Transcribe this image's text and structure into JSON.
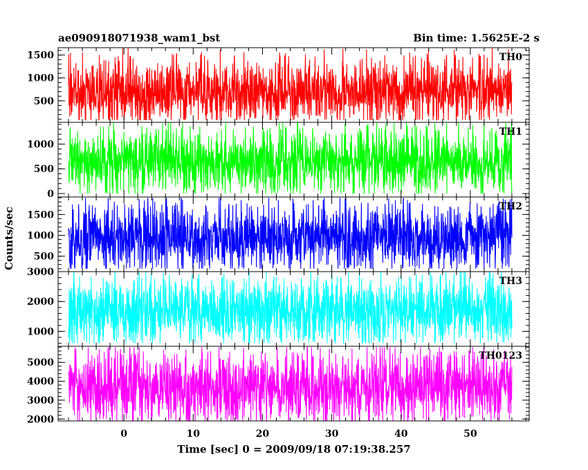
{
  "header": {
    "left_title": "ae090918071938_wam1_bst",
    "right_title": "Bin time: 1.5625E-2 s"
  },
  "axes": {
    "xlabel": "Time [sec] 0 = 2009/09/18 07:19:38.257",
    "ylabel": "Counts/sec"
  },
  "chart_data": {
    "type": "line",
    "title": "ae090918071938_wam1_bst",
    "subtitle": "Bin time: 1.5625E-2 s",
    "xlabel": "Time [sec] 0 = 2009/09/18 07:19:38.257",
    "ylabel": "Counts/sec",
    "xlim": [
      -9.5,
      58.5
    ],
    "x_data_range": [
      -8,
      56
    ],
    "x_ticks": [
      0,
      10,
      20,
      30,
      40,
      50
    ],
    "x_tick_labels": [
      "0",
      "10",
      "20",
      "30",
      "40",
      "50"
    ],
    "series": [
      {
        "name": "TH0",
        "color": "#ff0000",
        "ylim": [
          30,
          1660
        ],
        "y_ticks": [
          500,
          1000,
          1500
        ],
        "y_tick_labels": [
          "500",
          "1000",
          "1500"
        ],
        "baseline": 700,
        "typical_low": 250,
        "typical_high": 1300,
        "min": 80,
        "max": 1650
      },
      {
        "name": "TH1",
        "color": "#00ff00",
        "ylim": [
          -70,
          1440
        ],
        "y_ticks": [
          0,
          500,
          1000
        ],
        "y_tick_labels": [
          "0",
          "500",
          "1000"
        ],
        "baseline": 650,
        "typical_low": 150,
        "typical_high": 1200,
        "min": 0,
        "max": 1430
      },
      {
        "name": "TH2",
        "color": "#0000ff",
        "ylim": [
          130,
          1920
        ],
        "y_ticks": [
          500,
          1000,
          1500
        ],
        "y_tick_labels": [
          "500",
          "1000",
          "1500"
        ],
        "baseline": 950,
        "typical_low": 350,
        "typical_high": 1600,
        "min": 200,
        "max": 1900
      },
      {
        "name": "TH3",
        "color": "#00ffff",
        "ylim": [
          500,
          3000
        ],
        "y_ticks": [
          1000,
          2000,
          3000
        ],
        "y_tick_labels": [
          "1000",
          "2000",
          "3000"
        ],
        "baseline": 1700,
        "typical_low": 800,
        "typical_high": 2600,
        "min": 600,
        "max": 3000
      },
      {
        "name": "TH0123",
        "color": "#ff00ff",
        "ylim": [
          1900,
          5850
        ],
        "y_ticks": [
          2000,
          3000,
          4000,
          5000
        ],
        "y_tick_labels": [
          "2000",
          "3000",
          "4000",
          "5000"
        ],
        "baseline": 3700,
        "typical_low": 2300,
        "typical_high": 5300,
        "min": 1900,
        "max": 5800
      }
    ]
  }
}
